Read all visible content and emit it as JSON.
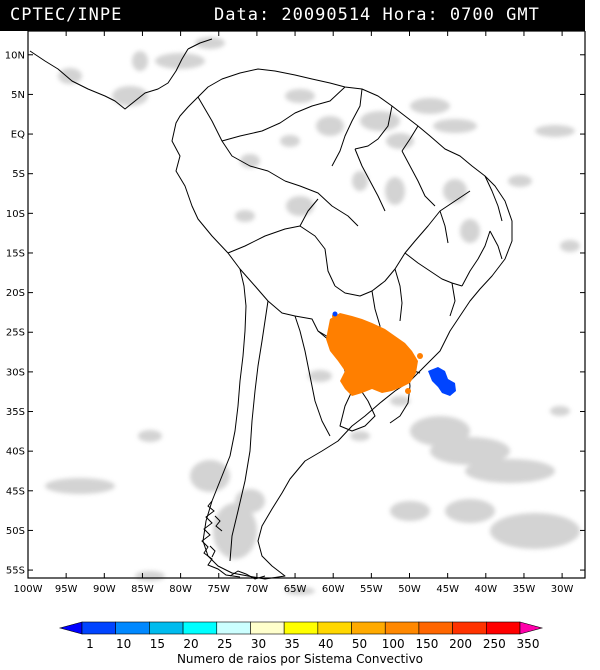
{
  "header": {
    "left_text": "CPTEC/INPE",
    "right_text": "Data: 20090514 Hora: 0700 GMT"
  },
  "axes": {
    "lat_labels": [
      "10N",
      "5N",
      "EQ",
      "5S",
      "10S",
      "15S",
      "20S",
      "25S",
      "30S",
      "35S",
      "40S",
      "45S",
      "50S",
      "55S"
    ],
    "lat_values": [
      10,
      5,
      0,
      -5,
      -10,
      -15,
      -20,
      -25,
      -30,
      -35,
      -40,
      -45,
      -50,
      -55
    ],
    "lon_labels": [
      "100W",
      "95W",
      "90W",
      "85W",
      "80W",
      "75W",
      "70W",
      "65W",
      "60W",
      "55W",
      "50W",
      "45W",
      "40W",
      "35W",
      "30W"
    ],
    "lon_values": [
      -100,
      -95,
      -90,
      -85,
      -80,
      -75,
      -70,
      -65,
      -60,
      -55,
      -50,
      -45,
      -40,
      -35,
      -30
    ],
    "lat_range": [
      -56,
      13
    ],
    "lon_range": [
      -100,
      -27
    ]
  },
  "legend": {
    "title": "Numero de raios por Sistema Convectivo",
    "labels": [
      "1",
      "10",
      "15",
      "20",
      "25",
      "30",
      "35",
      "40",
      "50",
      "100",
      "150",
      "200",
      "250",
      "350"
    ],
    "colors": [
      "#0000ff",
      "#0044ff",
      "#0088ff",
      "#00bbee",
      "#00ffff",
      "#ccffff",
      "#ffffcc",
      "#ffff00",
      "#ffd700",
      "#ffaa00",
      "#ff8800",
      "#ff6600",
      "#ff3300",
      "#ff0000",
      "#ff00aa"
    ]
  },
  "colors": {
    "cloud": "#c8c8c8",
    "border": "#000000",
    "frame": "#000000"
  }
}
